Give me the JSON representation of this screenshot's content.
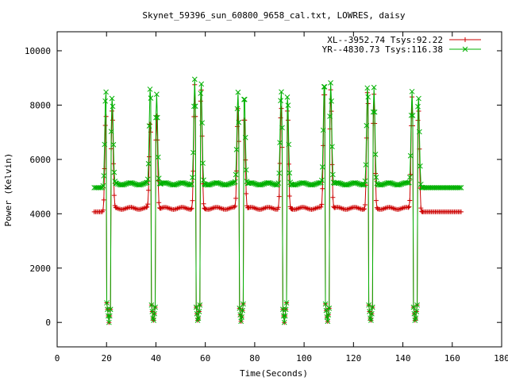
{
  "chart_data": {
    "type": "line",
    "title": "Skynet_59396_sun_60800_9658_cal.txt, LOWRES, daisy",
    "xlabel": "Time(Seconds)",
    "ylabel": "Power (Kelvin)",
    "xlim": [
      0,
      180
    ],
    "ylim": [
      -900,
      10700
    ],
    "x_ticks": [
      "0",
      "20",
      "40",
      "60",
      "80",
      "100",
      "120",
      "140",
      "160",
      "180"
    ],
    "y_ticks": [
      "0",
      "2000",
      "4000",
      "6000",
      "8000",
      "10000"
    ],
    "legend_position": "top-right",
    "series": [
      {
        "name": "XL--3952.74 Tsys:92.22",
        "color": "#cc0000",
        "marker": "plus",
        "baseline": 4070,
        "hump": 4200,
        "peaks": [
          7700,
          7900,
          7400,
          7600,
          8750,
          8700,
          7900,
          7700,
          8000,
          7900,
          8700,
          8600,
          8600,
          8400,
          8300,
          7900
        ]
      },
      {
        "name": "YR--4830.73 Tsys:116.38",
        "color": "#00b000",
        "marker": "x",
        "baseline": 4960,
        "hump": 5100,
        "peaks": [
          8600,
          8350,
          8700,
          8400,
          8950,
          8900,
          8500,
          8450,
          8600,
          8400,
          8950,
          8850,
          8750,
          8650,
          8500,
          8350
        ]
      }
    ]
  }
}
